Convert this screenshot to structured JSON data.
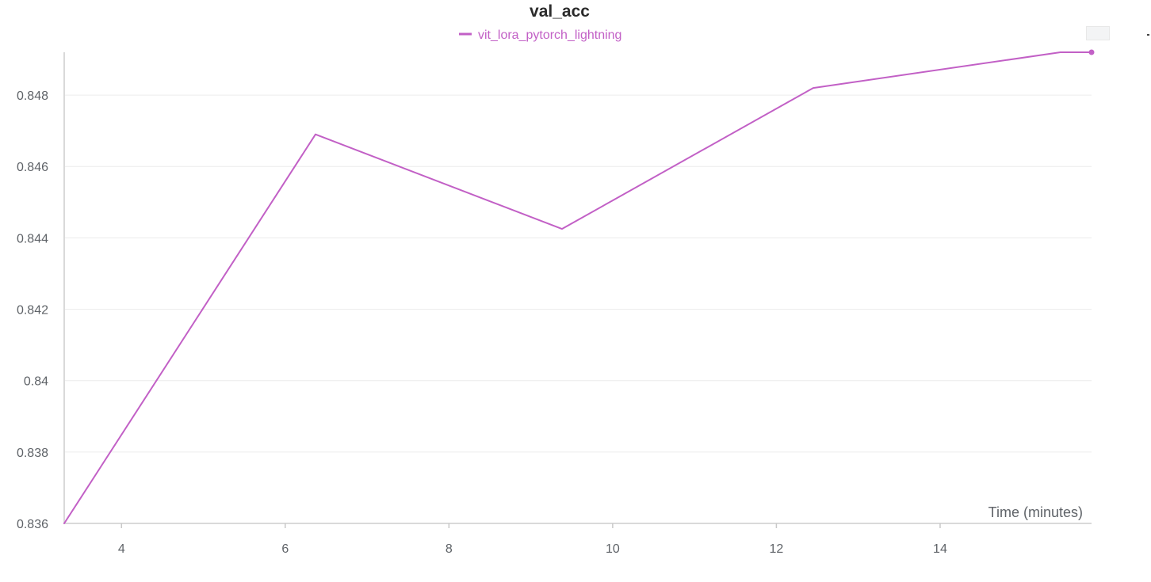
{
  "chart_data": {
    "type": "line",
    "title": "val_acc",
    "xlabel": "Time (minutes)",
    "ylabel": "",
    "xlim": [
      3.3,
      15.85
    ],
    "ylim": [
      0.836,
      0.8492
    ],
    "x_ticks": [
      4,
      6,
      8,
      10,
      12,
      14
    ],
    "x_tick_labels": [
      "4",
      "6",
      "8",
      "10",
      "12",
      "14"
    ],
    "y_ticks": [
      0.836,
      0.838,
      0.84,
      0.842,
      0.844,
      0.846,
      0.848
    ],
    "y_tick_labels": [
      "0.836",
      "0.838",
      "0.84",
      "0.842",
      "0.844",
      "0.846",
      "0.848"
    ],
    "grid": true,
    "legend_position": "top-center",
    "series": [
      {
        "name": "vit_lora_pytorch_lightning",
        "color": "#c260c6",
        "x": [
          3.3,
          6.37,
          9.38,
          12.45,
          15.47,
          15.85
        ],
        "y": [
          0.836,
          0.8469,
          0.84425,
          0.8482,
          0.8492,
          0.8492
        ]
      }
    ]
  },
  "colors": {
    "series": "#c260c6",
    "grid": "#ececec",
    "axis": "#d9d9d9",
    "tick_text": "#5f6368",
    "title": "#2b2b2b"
  }
}
